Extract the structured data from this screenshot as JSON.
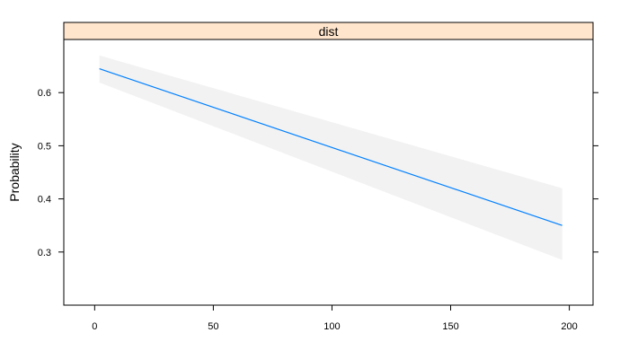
{
  "chart_data": {
    "type": "line",
    "panel_title": "dist",
    "xlabel": "",
    "ylabel": "Probability",
    "xlim": [
      -13,
      210
    ],
    "ylim": [
      0.2,
      0.7
    ],
    "x_ticks": [
      0,
      50,
      100,
      150,
      200
    ],
    "y_ticks": [
      0.3,
      0.4,
      0.5,
      0.6
    ],
    "grid": false,
    "series": [
      {
        "x": [
          2,
          197
        ],
        "y": [
          0.645,
          0.35
        ],
        "ci_lower": [
          0.619,
          0.285
        ],
        "ci_upper": [
          0.67,
          0.42
        ],
        "color": "#0080ff"
      }
    ],
    "band_color": "#f2f2f2",
    "strip_color": "#ffe5cc"
  }
}
